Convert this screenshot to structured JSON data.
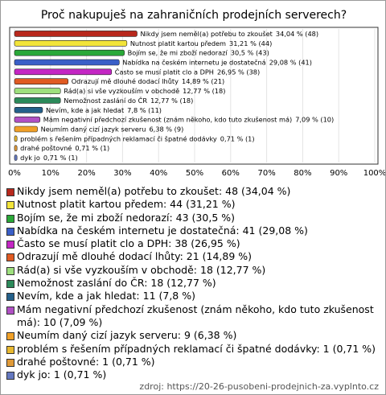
{
  "chart_data": {
    "type": "bar",
    "orientation": "horizontal",
    "title": "Proč nakupuješ na zahraničních prodejních serverech?",
    "categories": [
      "Nikdy jsem neměl(a) potřebu to zkoušet",
      "Nutnost platit kartou předem",
      "Bojím se, že mi zboží nedorazí",
      "Nabídka na českém internetu je dostatečná",
      "Často se musí platit clo a DPH",
      "Odrazují mě dlouhé dodací lhůty",
      "Rád(a) si vše vyzkouším v obchodě",
      "Nemožnost zaslání do ČR",
      "Nevím, kde a jak hledat",
      "Mám negativní předchozí zkušenost (znám někoho, kdo tuto zkušenost má)",
      "Neumím daný cizí jazyk serveru",
      "problém s řešením případných reklamací či špatné dodávky",
      "drahé poštovné",
      "dyk jo"
    ],
    "values": [
      34.04,
      31.21,
      30.5,
      29.08,
      26.95,
      14.89,
      12.77,
      12.77,
      7.8,
      7.09,
      6.38,
      0.71,
      0.71,
      0.71
    ],
    "value_labels": [
      "34,04 % (48)",
      "31,21 % (44)",
      "30,5 % (43)",
      "29,08 % (41)",
      "26,95 % (38)",
      "14,89 % (21)",
      "12,77 % (18)",
      "12,77 % (18)",
      "7,8 % (11)",
      "7,09 % (10)",
      "6,38 % (9)",
      "0,71 % (1)",
      "0,71 % (1)",
      "0,71 % (1)"
    ],
    "legend_labels": [
      "Nikdy jsem neměl(a) potřebu to zkoušet: 48 (34,04 %)",
      "Nutnost platit kartou předem: 44 (31,21 %)",
      "Bojím se, že mi zboží nedorazí: 43 (30,5 %)",
      "Nabídka na českém internetu je dostatečná: 41 (29,08 %)",
      "Často se musí platit clo a DPH: 38 (26,95 %)",
      "Odrazují mě dlouhé dodací lhůty: 21 (14,89 %)",
      "Rád(a) si vše vyzkouším v obchodě: 18 (12,77 %)",
      "Nemožnost zaslání do ČR: 18 (12,77 %)",
      "Nevím, kde a jak hledat: 11 (7,8 %)",
      "Mám negativní předchozí zkušenost (znám někoho, kdo tuto zkušenost má): 10 (7,09 %)",
      "Neumím daný cizí jazyk serveru: 9 (6,38 %)",
      "problém s řešením případných reklamací či špatné dodávky: 1 (0,71 %)",
      "drahé poštovné: 1 (0,71 %)",
      "dyk jo: 1 (0,71 %)"
    ],
    "colors": [
      "#b8281c",
      "#f2e43a",
      "#2aa838",
      "#3a5fc8",
      "#c426c4",
      "#e05a22",
      "#9ee07e",
      "#2b8a5a",
      "#24608a",
      "#b050c4",
      "#f0a028",
      "#e8b830",
      "#e09a38",
      "#6478c0"
    ],
    "xlim": [
      0,
      100
    ],
    "xticks": [
      {
        "value": 0,
        "label": "0%"
      },
      {
        "value": 10,
        "label": "10%"
      },
      {
        "value": 20,
        "label": "20%"
      },
      {
        "value": 30,
        "label": "30%"
      },
      {
        "value": 40,
        "label": "40%"
      },
      {
        "value": 50,
        "label": "50%"
      },
      {
        "value": 60,
        "label": "60%"
      },
      {
        "value": 70,
        "label": "70%"
      },
      {
        "value": 80,
        "label": "80%"
      },
      {
        "value": 90,
        "label": "90%"
      },
      {
        "value": 100,
        "label": "100%"
      }
    ],
    "grid": true,
    "source": "zdroj: https://20-26-pusobeni-prodejnich-za.vyplnto.cz"
  }
}
